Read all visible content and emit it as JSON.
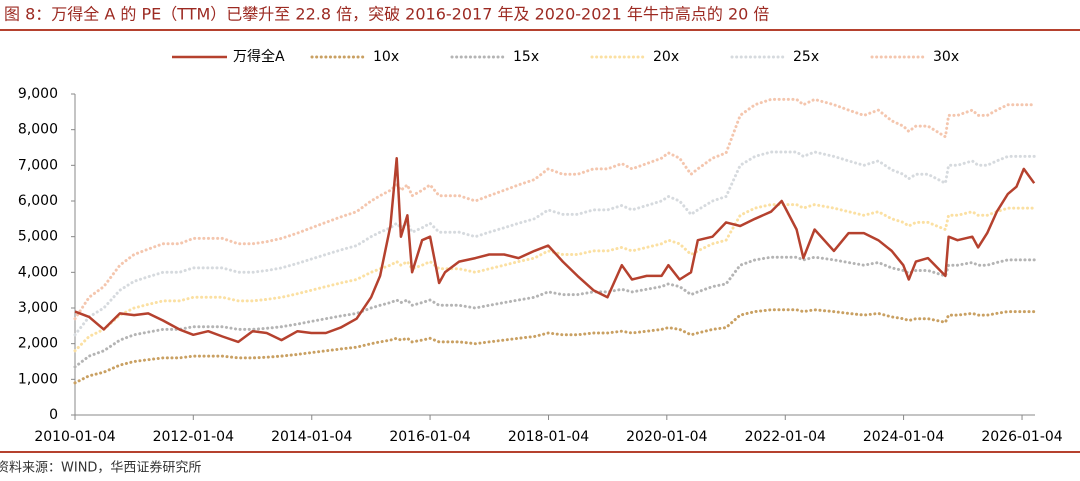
{
  "chart_data": {
    "type": "line",
    "title": "图 8：万得全 A 的 PE（TTM）已攀升至 22.8 倍，突破 2016-2017 年及 2020-2021 年牛市高点的 20 倍",
    "source": "资料来源：WIND，华西证券研究所",
    "x": [
      "2010-01-04",
      "2010-04-01",
      "2010-07-01",
      "2010-10-08",
      "2011-01-04",
      "2011-04-01",
      "2011-07-01",
      "2011-10-10",
      "2012-01-04",
      "2012-04-05",
      "2012-07-02",
      "2012-10-08",
      "2013-01-04",
      "2013-04-01",
      "2013-07-01",
      "2013-10-08",
      "2014-01-02",
      "2014-04-01",
      "2014-07-01",
      "2014-10-08",
      "2015-01-05",
      "2015-03-02",
      "2015-05-04",
      "2015-06-12",
      "2015-07-08",
      "2015-08-17",
      "2015-09-15",
      "2015-11-16",
      "2016-01-04",
      "2016-02-29",
      "2016-04-05",
      "2016-07-01",
      "2016-10-10",
      "2017-01-03",
      "2017-04-05",
      "2017-07-03",
      "2017-10-09",
      "2018-01-02",
      "2018-04-02",
      "2018-07-02",
      "2018-10-08",
      "2019-01-03",
      "2019-04-01",
      "2019-06-03",
      "2019-09-02",
      "2019-12-02",
      "2020-01-14",
      "2020-03-23",
      "2020-06-01",
      "2020-07-13",
      "2020-10-12",
      "2021-01-04",
      "2021-04-01",
      "2021-07-01",
      "2021-10-08",
      "2021-12-13",
      "2022-03-15",
      "2022-04-26",
      "2022-07-04",
      "2022-10-31",
      "2023-01-30",
      "2023-05-04",
      "2023-08-01",
      "2023-10-23",
      "2024-01-02",
      "2024-02-05",
      "2024-03-20",
      "2024-06-03",
      "2024-09-18",
      "2024-10-08",
      "2024-12-02",
      "2025-03-03",
      "2025-04-08",
      "2025-06-03",
      "2025-08-01",
      "2025-10-09",
      "2025-12-01",
      "2026-01-15",
      "2026-03-20"
    ],
    "xlim": [
      "2010-01-04",
      "2026-03-25"
    ],
    "xticks": [
      "2010-01-04",
      "2012-01-04",
      "2014-01-04",
      "2016-01-04",
      "2018-01-04",
      "2020-01-04",
      "2022-01-04",
      "2024-01-04",
      "2026-01-04"
    ],
    "ylim": [
      0,
      9000
    ],
    "yticks": [
      0,
      {
        "value": 1000,
        "label": "1,000"
      },
      {
        "value": 2000,
        "label": "2,000"
      },
      {
        "value": 3000,
        "label": "3,000"
      },
      {
        "value": 4000,
        "label": "4,000"
      },
      {
        "value": 5000,
        "label": "5,000"
      },
      {
        "value": 6000,
        "label": "6,000"
      },
      {
        "value": 7000,
        "label": "7,000"
      },
      {
        "value": 8000,
        "label": "8,000"
      },
      {
        "value": 9000,
        "label": "9,000"
      }
    ],
    "grid": false,
    "legend": "top",
    "series": [
      {
        "name": "万得全A",
        "color": "#b5412e",
        "style": "solid",
        "values": [
          2900,
          2750,
          2400,
          2850,
          2800,
          2850,
          2650,
          2400,
          2250,
          2350,
          2200,
          2050,
          2350,
          2300,
          2100,
          2350,
          2300,
          2300,
          2450,
          2700,
          3300,
          3900,
          5300,
          7200,
          5000,
          5600,
          4000,
          4900,
          5000,
          3700,
          4000,
          4300,
          4400,
          4500,
          4500,
          4400,
          4600,
          4750,
          4300,
          3900,
          3500,
          3300,
          4200,
          3800,
          3900,
          3900,
          4200,
          3800,
          4000,
          4900,
          5000,
          5400,
          5300,
          5500,
          5700,
          6000,
          5200,
          4400,
          5200,
          4600,
          5100,
          5100,
          4900,
          4600,
          4200,
          3800,
          4300,
          4400,
          3900,
          5000,
          4900,
          5000,
          4700,
          5100,
          5700,
          6200,
          6400,
          6900,
          6500
        ]
      },
      {
        "name": "10x",
        "color": "#c9a062",
        "style": "dotted",
        "values": [
          900,
          1100,
          1200,
          1400,
          1500,
          1550,
          1600,
          1600,
          1650,
          1650,
          1650,
          1600,
          1600,
          1620,
          1650,
          1700,
          1750,
          1800,
          1850,
          1900,
          2000,
          2050,
          2100,
          2150,
          2100,
          2150,
          2050,
          2100,
          2150,
          2050,
          2050,
          2050,
          2000,
          2050,
          2100,
          2150,
          2200,
          2300,
          2250,
          2250,
          2300,
          2300,
          2350,
          2300,
          2350,
          2400,
          2450,
          2400,
          2250,
          2300,
          2400,
          2450,
          2800,
          2900,
          2950,
          2950,
          2950,
          2900,
          2950,
          2900,
          2850,
          2800,
          2850,
          2750,
          2700,
          2650,
          2700,
          2700,
          2600,
          2800,
          2800,
          2850,
          2800,
          2800,
          2850,
          2900,
          2900,
          2900,
          2900
        ]
      },
      {
        "name": "15x",
        "color": "#b4b4b4",
        "style": "dotted",
        "values": [
          1350,
          1650,
          1800,
          2100,
          2250,
          2325,
          2400,
          2400,
          2475,
          2475,
          2475,
          2400,
          2400,
          2430,
          2475,
          2550,
          2625,
          2700,
          2775,
          2850,
          3000,
          3075,
          3150,
          3225,
          3150,
          3225,
          3075,
          3150,
          3225,
          3075,
          3075,
          3075,
          3000,
          3075,
          3150,
          3225,
          3300,
          3450,
          3375,
          3375,
          3450,
          3450,
          3525,
          3450,
          3525,
          3600,
          3675,
          3600,
          3375,
          3450,
          3600,
          3675,
          4200,
          4350,
          4425,
          4425,
          4425,
          4350,
          4425,
          4350,
          4275,
          4200,
          4275,
          4125,
          4050,
          3975,
          4050,
          4050,
          3900,
          4200,
          4200,
          4275,
          4200,
          4200,
          4275,
          4350,
          4350,
          4350,
          4350
        ]
      },
      {
        "name": "20x",
        "color": "#fbe0a2",
        "style": "dotted",
        "values": [
          1800,
          2200,
          2400,
          2800,
          3000,
          3100,
          3200,
          3200,
          3300,
          3300,
          3300,
          3200,
          3200,
          3240,
          3300,
          3400,
          3500,
          3600,
          3700,
          3800,
          4000,
          4100,
          4200,
          4300,
          4200,
          4300,
          4100,
          4200,
          4300,
          4100,
          4100,
          4100,
          4000,
          4100,
          4200,
          4300,
          4400,
          4600,
          4500,
          4500,
          4600,
          4600,
          4700,
          4600,
          4700,
          4800,
          4900,
          4800,
          4500,
          4600,
          4800,
          4900,
          5600,
          5800,
          5900,
          5900,
          5900,
          5800,
          5900,
          5800,
          5700,
          5600,
          5700,
          5500,
          5400,
          5300,
          5400,
          5400,
          5200,
          5600,
          5600,
          5700,
          5600,
          5600,
          5700,
          5800,
          5800,
          5800,
          5800
        ]
      },
      {
        "name": "25x",
        "color": "#d6dade",
        "style": "dotted",
        "values": [
          2250,
          2750,
          3000,
          3500,
          3750,
          3875,
          4000,
          4000,
          4125,
          4125,
          4125,
          4000,
          4000,
          4050,
          4125,
          4250,
          4375,
          4500,
          4625,
          4750,
          5000,
          5125,
          5250,
          5375,
          5250,
          5375,
          5125,
          5250,
          5375,
          5125,
          5125,
          5125,
          5000,
          5125,
          5250,
          5375,
          5500,
          5750,
          5625,
          5625,
          5750,
          5750,
          5875,
          5750,
          5875,
          6000,
          6125,
          6000,
          5625,
          5750,
          6000,
          6125,
          7000,
          7250,
          7375,
          7375,
          7375,
          7250,
          7375,
          7250,
          7125,
          7000,
          7125,
          6875,
          6750,
          6625,
          6750,
          6750,
          6500,
          7000,
          7000,
          7125,
          7000,
          7000,
          7125,
          7250,
          7250,
          7250,
          7250
        ]
      },
      {
        "name": "30x",
        "color": "#f4c6ae",
        "style": "dotted",
        "values": [
          2700,
          3300,
          3600,
          4200,
          4500,
          4650,
          4800,
          4800,
          4950,
          4950,
          4950,
          4800,
          4800,
          4860,
          4950,
          5100,
          5250,
          5400,
          5550,
          5700,
          6000,
          6150,
          6300,
          6450,
          6300,
          6450,
          6150,
          6300,
          6450,
          6150,
          6150,
          6150,
          6000,
          6150,
          6300,
          6450,
          6600,
          6900,
          6750,
          6750,
          6900,
          6900,
          7050,
          6900,
          7050,
          7200,
          7350,
          7200,
          6750,
          6900,
          7200,
          7350,
          8400,
          8700,
          8850,
          8850,
          8850,
          8700,
          8850,
          8700,
          8550,
          8400,
          8550,
          8250,
          8100,
          7950,
          8100,
          8100,
          7800,
          8400,
          8400,
          8550,
          8400,
          8400,
          8550,
          8700,
          8700,
          8700,
          8700
        ]
      }
    ]
  }
}
